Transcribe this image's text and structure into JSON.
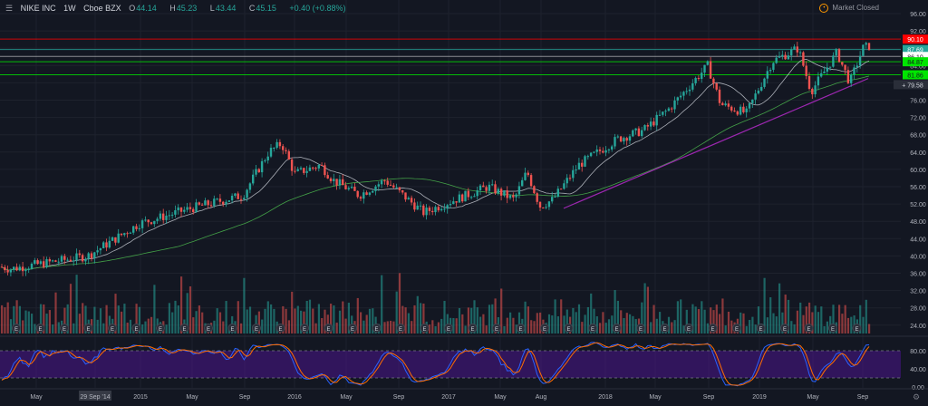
{
  "header": {
    "symbol": "NIKE INC",
    "interval": "1W",
    "exchange": "Cboe BZX",
    "o_label": "O",
    "o_value": "44.14",
    "h_label": "H",
    "h_value": "45.23",
    "l_label": "L",
    "l_value": "43.44",
    "c_label": "C",
    "c_value": "45.15",
    "change": "+0.40 (+0.88%)",
    "market_status": "Market Closed"
  },
  "colors": {
    "background": "#131722",
    "up": "#26a69a",
    "down": "#ef5350",
    "line_white": "#d1d4dc",
    "line_green": "#43a047",
    "trend_purple": "#9c27b0",
    "stoch_blue": "#2962ff",
    "stoch_orange": "#ff6d00",
    "stoch_band": "#4a148c"
  },
  "horizontal_lines": [
    {
      "price": 90.1,
      "label": "90.10",
      "color": "#ff0000"
    },
    {
      "price": 87.69,
      "label": "87.69",
      "color": "#26a69a"
    },
    {
      "price": 86.1,
      "label": "86.10",
      "color": "#ffffff"
    },
    {
      "price": 84.87,
      "label": "84.87",
      "color": "#00e600"
    },
    {
      "price": 81.86,
      "label": "81.86",
      "color": "#00e600"
    }
  ],
  "crosshair_label": "79.58",
  "chart_data": {
    "type": "candlestick",
    "y_ticks": [
      "96.00",
      "92.00",
      "88.00",
      "84.00",
      "80.00",
      "76.00",
      "72.00",
      "68.00",
      "64.00",
      "60.00",
      "56.00",
      "52.00",
      "48.00",
      "44.00",
      "40.00",
      "36.00",
      "32.00",
      "28.00",
      "24.00"
    ],
    "ylim": [
      22,
      96
    ],
    "x_ticks": [
      "May",
      "29 Sep '14",
      "2015",
      "May",
      "Sep",
      "2016",
      "May",
      "Sep",
      "2017",
      "May",
      "Aug",
      "2018",
      "May",
      "Sep",
      "2019",
      "May",
      "Sep"
    ],
    "price_keypoints": [
      {
        "date": "2014-03",
        "close": 37.0
      },
      {
        "date": "2014-09",
        "close": 40.0
      },
      {
        "date": "2015-01",
        "close": 47.5
      },
      {
        "date": "2015-05",
        "close": 51.0
      },
      {
        "date": "2015-09",
        "close": 54.0
      },
      {
        "date": "2015-11",
        "close": 64.0
      },
      {
        "date": "2015-12",
        "close": 66.0
      },
      {
        "date": "2016-01",
        "close": 59.0
      },
      {
        "date": "2016-03",
        "close": 61.0
      },
      {
        "date": "2016-04",
        "close": 57.5
      },
      {
        "date": "2016-06",
        "close": 54.0
      },
      {
        "date": "2016-08",
        "close": 57.5
      },
      {
        "date": "2016-11",
        "close": 50.0
      },
      {
        "date": "2017-01",
        "close": 52.5
      },
      {
        "date": "2017-04",
        "close": 56.0
      },
      {
        "date": "2017-06",
        "close": 53.0
      },
      {
        "date": "2017-07",
        "close": 59.5
      },
      {
        "date": "2017-08",
        "close": 51.5
      },
      {
        "date": "2017-09",
        "close": 53.0
      },
      {
        "date": "2017-11",
        "close": 61.0
      },
      {
        "date": "2018-02",
        "close": 67.0
      },
      {
        "date": "2018-04",
        "close": 69.0
      },
      {
        "date": "2018-06",
        "close": 74.0
      },
      {
        "date": "2018-09",
        "close": 84.0
      },
      {
        "date": "2018-10",
        "close": 75.0
      },
      {
        "date": "2018-12",
        "close": 73.0
      },
      {
        "date": "2019-02",
        "close": 85.0
      },
      {
        "date": "2019-04",
        "close": 88.0
      },
      {
        "date": "2019-05",
        "close": 78.0
      },
      {
        "date": "2019-07",
        "close": 87.0
      },
      {
        "date": "2019-08",
        "close": 80.0
      },
      {
        "date": "2019-09",
        "close": 88.0
      },
      {
        "date": "2019-10",
        "close": 89.0
      }
    ],
    "indicators": [
      "moving average (white)",
      "moving average (green)",
      "volume",
      "stochastic"
    ],
    "stoch_ticks": [
      "80.00",
      "40.00",
      "0.00"
    ],
    "stoch_range": [
      0,
      100
    ]
  }
}
